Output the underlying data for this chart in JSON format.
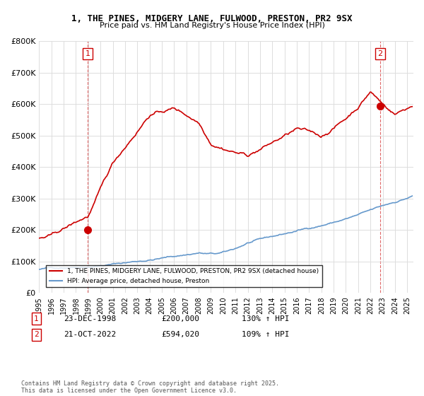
{
  "title": "1, THE PINES, MIDGERY LANE, FULWOOD, PRESTON, PR2 9SX",
  "subtitle": "Price paid vs. HM Land Registry's House Price Index (HPI)",
  "ylabel_values": [
    "£0",
    "£100K",
    "£200K",
    "£300K",
    "£400K",
    "£500K",
    "£600K",
    "£700K",
    "£800K"
  ],
  "ylim": [
    0,
    800000
  ],
  "yticks": [
    0,
    100000,
    200000,
    300000,
    400000,
    500000,
    600000,
    700000,
    800000
  ],
  "xlim_start": 1995.0,
  "xlim_end": 2025.5,
  "red_line_color": "#cc0000",
  "blue_line_color": "#6699cc",
  "background_color": "#ffffff",
  "grid_color": "#dddddd",
  "purchase1_x": 1998.97,
  "purchase1_y": 200000,
  "purchase1_label": "1",
  "purchase2_x": 2022.8,
  "purchase2_y": 594020,
  "purchase2_label": "2",
  "legend_red": "1, THE PINES, MIDGERY LANE, FULWOOD, PRESTON, PR2 9SX (detached house)",
  "legend_blue": "HPI: Average price, detached house, Preston",
  "annotation1": "23-DEC-1998    £200,000    130% ↑ HPI",
  "annotation2": "21-OCT-2022    £594,020    109% ↑ HPI",
  "footer": "Contains HM Land Registry data © Crown copyright and database right 2025.\nThis data is licensed under the Open Government Licence v3.0.",
  "xticks": [
    1995,
    1996,
    1997,
    1998,
    1999,
    2000,
    2001,
    2002,
    2003,
    2004,
    2005,
    2006,
    2007,
    2008,
    2009,
    2010,
    2011,
    2012,
    2013,
    2014,
    2015,
    2016,
    2017,
    2018,
    2019,
    2020,
    2021,
    2022,
    2023,
    2024,
    2025
  ]
}
